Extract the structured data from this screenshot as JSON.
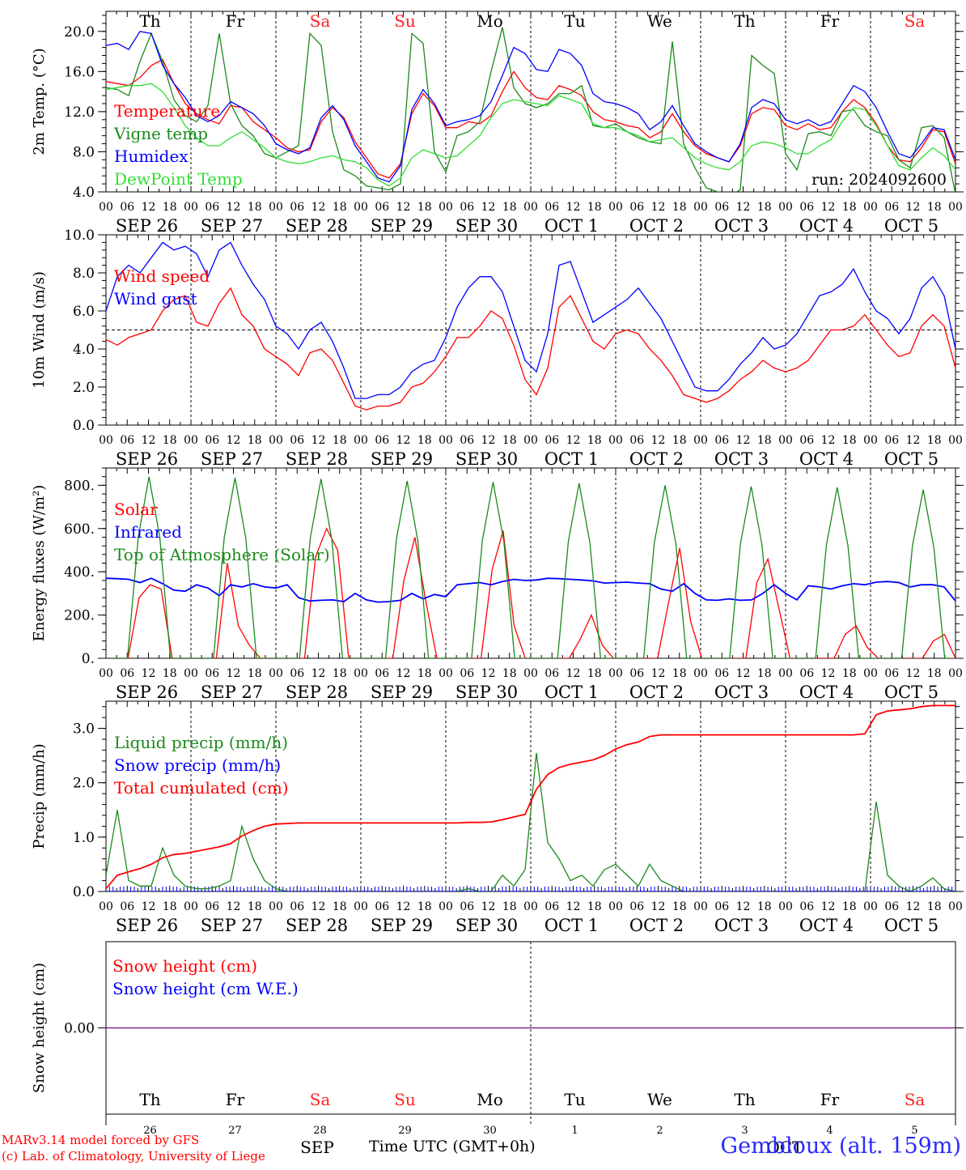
{
  "colors": {
    "red": "#ff0000",
    "green": "#1b8a1b",
    "blue": "#0000ff",
    "light_green": "#33dd33",
    "black": "#000000",
    "weekend_red": "#ff2222",
    "snow_line": "#882288",
    "footer_blue": "#3333ff"
  },
  "shared": {
    "hour_ticks": [
      "00",
      "06",
      "12",
      "18"
    ],
    "day_labels": [
      "SEP 26",
      "SEP 27",
      "SEP 28",
      "SEP 29",
      "SEP 30",
      "OCT 1",
      "OCT 2",
      "OCT 3",
      "OCT 4",
      "OCT 5"
    ],
    "weekdays": [
      "Th",
      "Fr",
      "Sa",
      "Su",
      "Mo",
      "Tu",
      "We",
      "Th",
      "Fr",
      "Sa"
    ],
    "weekend_flags": [
      false,
      false,
      true,
      true,
      false,
      false,
      false,
      false,
      false,
      true
    ],
    "day_numbers": [
      "26",
      "27",
      "28",
      "29",
      "30",
      "1",
      "2",
      "3",
      "4",
      "5"
    ],
    "month_labels": [
      "SEP",
      "OCT"
    ]
  },
  "run_label": "run: 2024092600",
  "footer": {
    "line1": "MARv3.14 model forced by GFS",
    "line2": "(c) Lab. of Climatology, University of Liege",
    "axis_title": "Time UTC (GMT+0h)",
    "station": "Gembloux (alt. 159m)"
  },
  "chart_data": [
    {
      "type": "line",
      "ylabel": "2m Temp. (°C)",
      "ylim": [
        4,
        22
      ],
      "yticks": [
        "4.0",
        "8.0",
        "12.0",
        "16.0",
        "20.0"
      ],
      "x_unit": "hours since 2024-09-26 00 UTC, 3-hourly",
      "series": [
        {
          "name": "Temperature",
          "color": "#ff0000",
          "values": [
            15.0,
            14.8,
            14.6,
            15.4,
            16.6,
            17.2,
            14.8,
            12.8,
            11.8,
            11.2,
            10.8,
            12.6,
            12.4,
            11.0,
            10.2,
            9.4,
            8.4,
            8.0,
            8.2,
            11.0,
            12.4,
            11.4,
            9.0,
            7.4,
            5.8,
            5.4,
            6.8,
            11.8,
            13.8,
            12.6,
            10.4,
            10.4,
            11.0,
            10.8,
            11.6,
            14.0,
            16.0,
            14.4,
            13.4,
            13.2,
            14.6,
            14.2,
            13.6,
            12.0,
            11.2,
            11.0,
            10.6,
            10.4,
            9.4,
            10.0,
            11.8,
            10.0,
            8.6,
            7.8,
            7.4,
            7.0,
            8.6,
            11.8,
            12.4,
            12.2,
            10.6,
            10.2,
            10.8,
            10.2,
            10.4,
            12.0,
            13.2,
            12.4,
            10.8,
            8.6,
            7.2,
            7.0,
            8.4,
            10.2,
            10.0,
            6.8
          ]
        },
        {
          "name": "Vigne temp",
          "color": "#1b8a1b",
          "values": [
            14.4,
            14.2,
            13.6,
            17.0,
            19.8,
            17.0,
            13.2,
            11.6,
            11.0,
            12.6,
            19.8,
            12.8,
            10.6,
            9.6,
            7.8,
            7.4,
            8.0,
            8.6,
            19.8,
            18.6,
            10.0,
            6.2,
            5.6,
            4.6,
            4.4,
            4.2,
            4.8,
            19.8,
            18.8,
            8.0,
            6.0,
            9.6,
            10.0,
            11.0,
            16.0,
            20.4,
            14.4,
            12.8,
            12.4,
            12.8,
            13.8,
            13.8,
            14.6,
            10.6,
            10.4,
            10.8,
            10.0,
            9.4,
            9.0,
            8.8,
            19.0,
            8.8,
            6.4,
            4.4,
            4.0,
            3.6,
            4.2,
            17.6,
            16.6,
            15.8,
            7.8,
            6.2,
            9.8,
            10.0,
            9.6,
            12.0,
            12.2,
            10.6,
            10.0,
            9.6,
            7.2,
            6.4,
            10.4,
            10.6,
            9.4,
            3.8
          ]
        },
        {
          "name": "Humidex",
          "color": "#0000ff",
          "values": [
            18.6,
            18.8,
            18.2,
            20.0,
            19.8,
            16.6,
            14.8,
            13.4,
            11.6,
            11.0,
            11.6,
            13.0,
            12.4,
            11.8,
            10.6,
            8.8,
            8.2,
            7.8,
            8.4,
            11.4,
            12.6,
            11.2,
            8.6,
            7.0,
            5.4,
            5.0,
            6.6,
            12.2,
            14.2,
            12.8,
            10.6,
            11.0,
            11.2,
            11.6,
            13.0,
            15.6,
            18.4,
            17.8,
            16.2,
            16.0,
            18.2,
            17.8,
            16.6,
            13.8,
            13.0,
            12.8,
            12.4,
            11.8,
            10.2,
            11.0,
            12.6,
            10.6,
            8.8,
            8.0,
            7.4,
            7.0,
            8.8,
            12.4,
            13.2,
            12.8,
            11.2,
            10.8,
            11.2,
            10.6,
            11.0,
            12.8,
            14.6,
            14.0,
            12.4,
            10.0,
            7.8,
            7.4,
            8.8,
            10.4,
            10.2,
            7.2
          ]
        },
        {
          "name": "DewPoint Temp",
          "color": "#33dd33",
          "values": [
            14.2,
            14.4,
            14.6,
            14.6,
            14.8,
            14.0,
            12.4,
            10.6,
            9.4,
            8.6,
            8.6,
            9.4,
            10.0,
            9.2,
            8.4,
            7.4,
            7.0,
            6.8,
            7.0,
            7.4,
            7.6,
            7.2,
            7.0,
            6.4,
            5.2,
            4.6,
            5.4,
            7.4,
            8.2,
            7.8,
            7.4,
            7.6,
            8.6,
            9.6,
            11.4,
            12.8,
            13.2,
            13.0,
            12.8,
            12.6,
            13.6,
            13.2,
            12.8,
            10.8,
            10.4,
            10.4,
            10.0,
            9.6,
            9.0,
            9.2,
            9.4,
            8.4,
            7.4,
            6.8,
            6.4,
            6.2,
            7.0,
            8.6,
            9.0,
            8.8,
            8.4,
            7.8,
            7.8,
            8.6,
            9.2,
            11.0,
            12.4,
            12.2,
            10.6,
            8.6,
            6.6,
            6.2,
            7.4,
            8.4,
            7.6,
            6.2
          ]
        }
      ]
    },
    {
      "type": "line",
      "ylabel": "10m Wind (m/s)",
      "ylim": [
        0,
        10
      ],
      "yticks": [
        "0.0",
        "2.0",
        "4.0",
        "6.0",
        "8.0",
        "10.0"
      ],
      "reference_line": 5,
      "series": [
        {
          "name": "Wind speed",
          "color": "#ff0000",
          "values": [
            4.5,
            4.2,
            4.6,
            4.8,
            5.0,
            6.0,
            6.6,
            6.8,
            5.4,
            5.2,
            6.4,
            7.2,
            5.8,
            5.2,
            4.0,
            3.6,
            3.2,
            2.6,
            3.8,
            4.0,
            3.4,
            2.2,
            1.0,
            0.8,
            1.0,
            1.0,
            1.2,
            2.0,
            2.2,
            2.8,
            3.6,
            4.6,
            4.6,
            5.2,
            6.0,
            5.6,
            4.2,
            2.4,
            1.6,
            3.0,
            6.2,
            6.8,
            5.6,
            4.4,
            4.0,
            4.8,
            5.0,
            4.8,
            4.0,
            3.4,
            2.6,
            1.6,
            1.4,
            1.2,
            1.4,
            1.8,
            2.4,
            2.8,
            3.4,
            3.0,
            2.8,
            3.0,
            3.4,
            4.2,
            5.0,
            5.0,
            5.2,
            5.8,
            5.0,
            4.2,
            3.6,
            3.8,
            5.2,
            5.8,
            5.2,
            3.0
          ]
        },
        {
          "name": "Wind gust",
          "color": "#0000ff",
          "values": [
            6.0,
            7.8,
            8.4,
            8.0,
            8.8,
            9.6,
            9.2,
            9.4,
            9.0,
            7.8,
            9.2,
            9.6,
            8.4,
            7.4,
            6.6,
            5.2,
            4.8,
            4.0,
            5.0,
            5.4,
            4.4,
            3.0,
            1.4,
            1.4,
            1.6,
            1.6,
            2.0,
            2.8,
            3.2,
            3.4,
            4.6,
            6.2,
            7.2,
            7.8,
            7.8,
            7.0,
            5.2,
            3.4,
            2.8,
            4.8,
            8.4,
            8.6,
            7.0,
            5.4,
            5.8,
            6.2,
            6.6,
            7.2,
            6.4,
            5.6,
            4.4,
            3.2,
            2.0,
            1.8,
            1.8,
            2.4,
            3.2,
            3.8,
            4.6,
            4.0,
            4.2,
            4.8,
            5.8,
            6.8,
            7.0,
            7.4,
            8.2,
            7.0,
            6.0,
            5.6,
            4.8,
            5.6,
            7.2,
            7.8,
            6.8,
            4.0
          ]
        }
      ]
    },
    {
      "type": "line",
      "ylabel": "Energy fluxes (W/m²)",
      "ylim": [
        0,
        880
      ],
      "yticks": [
        "0.",
        "200.",
        "400.",
        "600.",
        "800."
      ],
      "series": [
        {
          "name": "Solar",
          "color": "#ff0000",
          "values": [
            0,
            0,
            0,
            280,
            340,
            320,
            0,
            0,
            0,
            0,
            0,
            440,
            150,
            60,
            0,
            0,
            0,
            0,
            0,
            470,
            600,
            500,
            0,
            0,
            0,
            0,
            0,
            360,
            560,
            260,
            0,
            0,
            0,
            0,
            0,
            410,
            590,
            150,
            0,
            0,
            0,
            0,
            0,
            90,
            200,
            60,
            0,
            0,
            0,
            0,
            0,
            260,
            510,
            170,
            0,
            0,
            0,
            0,
            0,
            350,
            460,
            230,
            0,
            0,
            0,
            0,
            0,
            110,
            150,
            50,
            0,
            0,
            0,
            0,
            0,
            80,
            110,
            0
          ]
        },
        {
          "name": "Infrared",
          "color": "#0000ff",
          "values": [
            370,
            368,
            365,
            350,
            370,
            345,
            315,
            310,
            340,
            325,
            290,
            340,
            330,
            345,
            330,
            325,
            340,
            280,
            265,
            268,
            270,
            262,
            300,
            270,
            260,
            262,
            268,
            300,
            275,
            295,
            285,
            340,
            345,
            350,
            340,
            355,
            365,
            360,
            362,
            370,
            368,
            365,
            362,
            358,
            348,
            350,
            352,
            348,
            345,
            320,
            310,
            345,
            300,
            270,
            268,
            275,
            268,
            270,
            300,
            340,
            300,
            270,
            335,
            330,
            320,
            335,
            345,
            340,
            352,
            355,
            350,
            330,
            340,
            340,
            330,
            265
          ]
        },
        {
          "name": "Top of Atmosphere (Solar)",
          "color": "#1b8a1b",
          "values": [
            0,
            0,
            0,
            560,
            840,
            560,
            0,
            0,
            0,
            0,
            0,
            560,
            835,
            555,
            0,
            0,
            0,
            0,
            0,
            555,
            830,
            550,
            0,
            0,
            0,
            0,
            0,
            550,
            820,
            545,
            0,
            0,
            0,
            0,
            0,
            545,
            815,
            540,
            0,
            0,
            0,
            0,
            0,
            540,
            810,
            535,
            0,
            0,
            0,
            0,
            0,
            535,
            800,
            530,
            0,
            0,
            0,
            0,
            0,
            530,
            795,
            525,
            0,
            0,
            0,
            0,
            0,
            525,
            790,
            520,
            0,
            0,
            0,
            0,
            0,
            520,
            780,
            510,
            0,
            0
          ]
        }
      ]
    },
    {
      "type": "line",
      "ylabel": "Precip (mm/h)",
      "ylim": [
        0,
        3.5
      ],
      "yticks": [
        "0.0",
        "1.0",
        "2.0",
        "3.0"
      ],
      "series": [
        {
          "name": "Liquid precip (mm/h)",
          "color": "#1b8a1b",
          "values": [
            0.3,
            1.5,
            0.2,
            0.1,
            0.1,
            0.8,
            0.3,
            0.1,
            0.05,
            0.05,
            0.1,
            0.2,
            1.2,
            0.6,
            0.2,
            0.05,
            0,
            0,
            0,
            0,
            0,
            0,
            0,
            0,
            0,
            0,
            0,
            0,
            0,
            0,
            0,
            0,
            0.05,
            0,
            0,
            0.3,
            0.1,
            0.4,
            2.55,
            0.9,
            0.6,
            0.2,
            0.3,
            0.1,
            0.4,
            0.5,
            0.3,
            0.1,
            0.5,
            0.2,
            0.1,
            0,
            0,
            0,
            0,
            0,
            0,
            0,
            0,
            0,
            0,
            0,
            0,
            0,
            0,
            0,
            0,
            0,
            1.65,
            0.3,
            0.1,
            0,
            0.1,
            0.25,
            0.05,
            0
          ]
        },
        {
          "name": "Snow precip (mm/h)",
          "color": "#0000ff",
          "values": [
            0,
            0,
            0,
            0,
            0,
            0,
            0,
            0,
            0,
            0,
            0,
            0,
            0,
            0,
            0,
            0,
            0,
            0,
            0,
            0,
            0,
            0,
            0,
            0,
            0,
            0,
            0,
            0,
            0,
            0,
            0,
            0,
            0,
            0,
            0,
            0,
            0,
            0,
            0,
            0,
            0,
            0,
            0,
            0,
            0,
            0,
            0,
            0,
            0,
            0,
            0,
            0,
            0,
            0,
            0,
            0,
            0,
            0,
            0,
            0,
            0,
            0,
            0,
            0,
            0,
            0,
            0,
            0,
            0,
            0,
            0,
            0,
            0,
            0,
            0,
            0
          ]
        },
        {
          "name": "Total cumulated (cm)",
          "color": "#ff0000",
          "values": [
            0.05,
            0.3,
            0.36,
            0.42,
            0.5,
            0.62,
            0.68,
            0.7,
            0.74,
            0.78,
            0.82,
            0.88,
            1.02,
            1.12,
            1.2,
            1.24,
            1.25,
            1.26,
            1.26,
            1.26,
            1.26,
            1.26,
            1.26,
            1.26,
            1.26,
            1.26,
            1.26,
            1.26,
            1.26,
            1.26,
            1.26,
            1.26,
            1.27,
            1.27,
            1.28,
            1.32,
            1.37,
            1.42,
            1.88,
            2.15,
            2.28,
            2.34,
            2.38,
            2.42,
            2.5,
            2.62,
            2.7,
            2.75,
            2.85,
            2.88,
            2.88,
            2.88,
            2.88,
            2.88,
            2.88,
            2.88,
            2.88,
            2.88,
            2.88,
            2.88,
            2.88,
            2.88,
            2.88,
            2.88,
            2.88,
            2.88,
            2.88,
            2.9,
            3.25,
            3.32,
            3.34,
            3.36,
            3.4,
            3.42,
            3.42,
            3.42
          ]
        }
      ]
    },
    {
      "type": "line",
      "ylabel": "Snow height (cm)",
      "ylim": [
        -1,
        1
      ],
      "yticks": [
        "0.00"
      ],
      "series": [
        {
          "name": "Snow height (cm)",
          "color": "#ff0000",
          "values": [
            0,
            0
          ]
        },
        {
          "name": "Snow height (cm W.E.)",
          "color": "#0000ff",
          "values": [
            0,
            0
          ]
        }
      ]
    }
  ]
}
